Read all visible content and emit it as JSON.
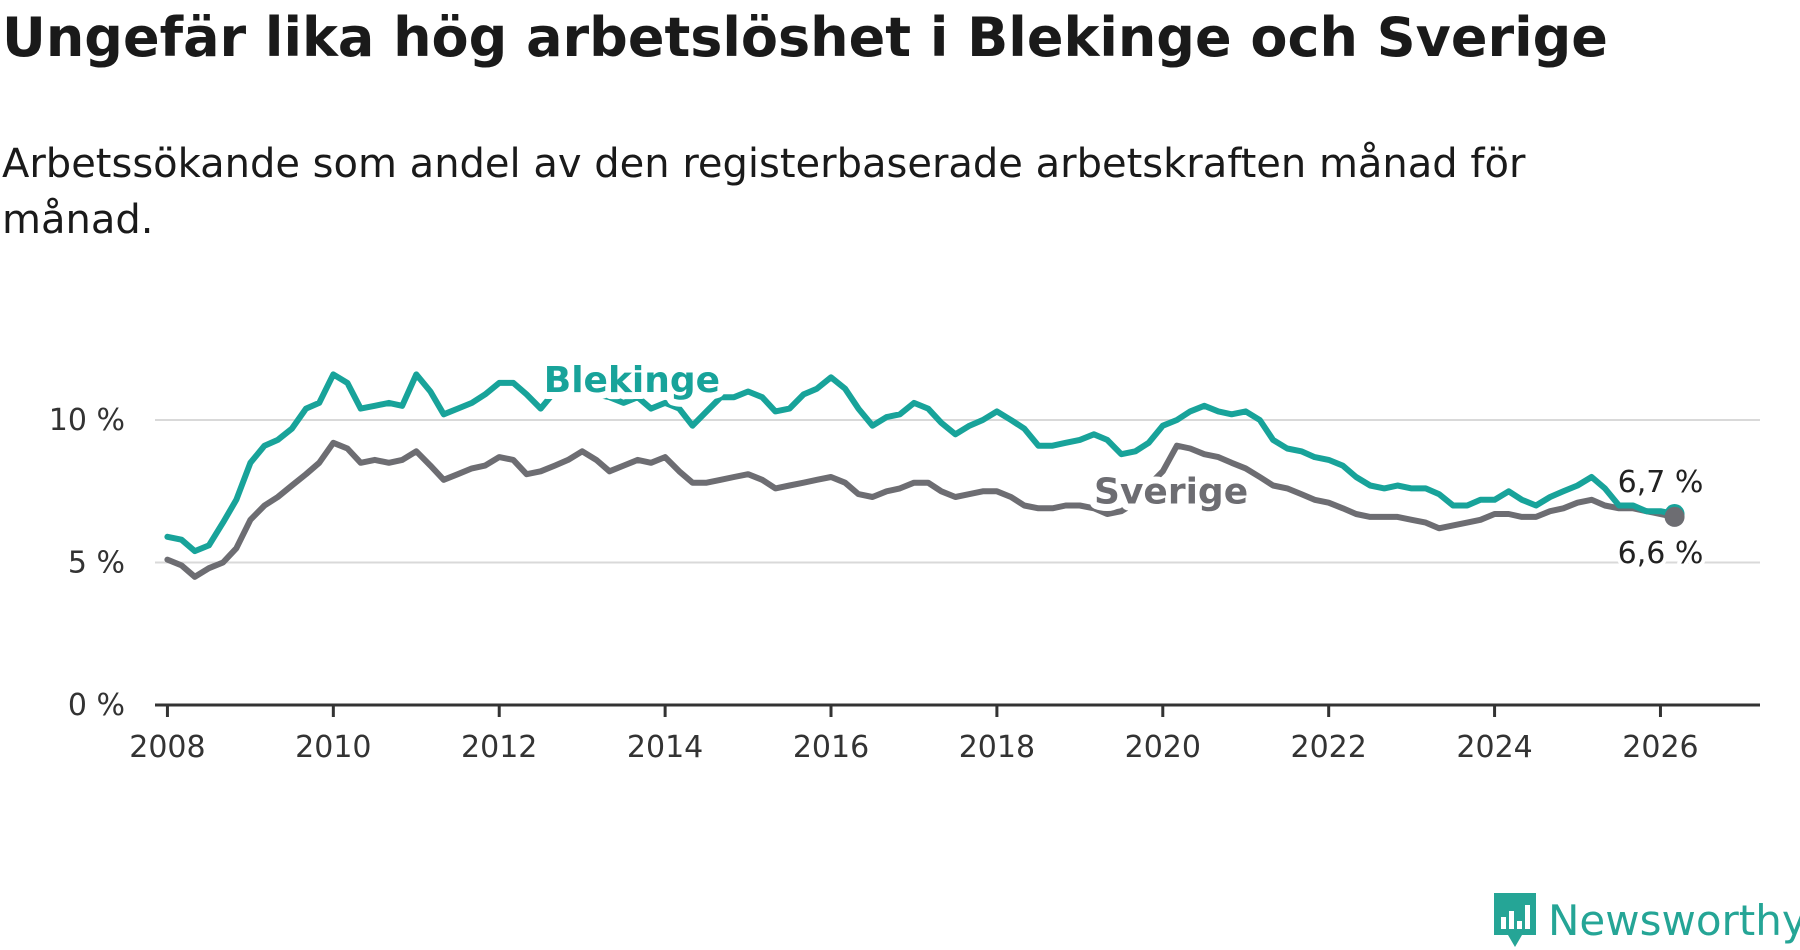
{
  "title": "Ungefär lika hög arbetslöshet i Blekinge och Sverige",
  "subtitle": "Arbetssökande som andel av den registerbaserade arbetskraften månad för månad.",
  "brand": {
    "name": "Newsworthy",
    "color": "#25a596"
  },
  "chart_data": {
    "type": "line",
    "title": "Ungefär lika hög arbetslöshet i Blekinge och Sverige",
    "subtitle": "Arbetssökande som andel av den registerbaserade arbetskraften månad för månad.",
    "xlabel": "",
    "ylabel": "",
    "xlim": [
      2007.85,
      2027.2
    ],
    "ylim": [
      0,
      12
    ],
    "x_ticks": [
      2008,
      2010,
      2012,
      2014,
      2016,
      2018,
      2020,
      2022,
      2024,
      2026
    ],
    "x_tick_labels": [
      "2008",
      "2010",
      "2012",
      "2014",
      "2016",
      "2018",
      "2020",
      "2022",
      "2024",
      "2026"
    ],
    "y_ticks": [
      0,
      5,
      10
    ],
    "y_tick_labels": [
      "0 %",
      "5 %",
      "10 %"
    ],
    "grid": true,
    "series": [
      {
        "name": "Blekinge",
        "color": "#18a39a",
        "x": [
          2008.0,
          2008.17,
          2008.33,
          2008.5,
          2008.67,
          2008.83,
          2009.0,
          2009.17,
          2009.33,
          2009.5,
          2009.67,
          2009.83,
          2010.0,
          2010.17,
          2010.33,
          2010.5,
          2010.67,
          2010.83,
          2011.0,
          2011.17,
          2011.33,
          2011.5,
          2011.67,
          2011.83,
          2012.0,
          2012.17,
          2012.33,
          2012.5,
          2012.67,
          2012.83,
          2013.0,
          2013.17,
          2013.33,
          2013.5,
          2013.67,
          2013.83,
          2014.0,
          2014.17,
          2014.33,
          2014.5,
          2014.67,
          2014.83,
          2015.0,
          2015.17,
          2015.33,
          2015.5,
          2015.67,
          2015.83,
          2016.0,
          2016.17,
          2016.33,
          2016.5,
          2016.67,
          2016.83,
          2017.0,
          2017.17,
          2017.33,
          2017.5,
          2017.67,
          2017.83,
          2018.0,
          2018.17,
          2018.33,
          2018.5,
          2018.67,
          2018.83,
          2019.0,
          2019.17,
          2019.33,
          2019.5,
          2019.67,
          2019.83,
          2020.0,
          2020.17,
          2020.33,
          2020.5,
          2020.67,
          2020.83,
          2021.0,
          2021.17,
          2021.33,
          2021.5,
          2021.67,
          2021.83,
          2022.0,
          2022.17,
          2022.33,
          2022.5,
          2022.67,
          2022.83,
          2023.0,
          2023.17,
          2023.33,
          2023.5,
          2023.67,
          2023.83,
          2024.0,
          2024.17,
          2024.33,
          2024.5,
          2024.67,
          2024.83,
          2025.0,
          2025.17,
          2025.33,
          2025.5,
          2025.67,
          2025.83,
          2026.0,
          2026.17
        ],
        "values": [
          5.9,
          5.8,
          5.4,
          5.6,
          6.4,
          7.2,
          8.5,
          9.1,
          9.3,
          9.7,
          10.4,
          10.6,
          11.6,
          11.3,
          10.4,
          10.5,
          10.6,
          10.5,
          11.6,
          11.0,
          10.2,
          10.4,
          10.6,
          10.9,
          11.3,
          11.3,
          10.9,
          10.4,
          11.0,
          11.3,
          11.6,
          10.9,
          10.8,
          10.6,
          10.8,
          10.4,
          10.6,
          10.4,
          9.8,
          10.3,
          10.8,
          10.8,
          11.0,
          10.8,
          10.3,
          10.4,
          10.9,
          11.1,
          11.5,
          11.1,
          10.4,
          9.8,
          10.1,
          10.2,
          10.6,
          10.4,
          9.9,
          9.5,
          9.8,
          10.0,
          10.3,
          10.0,
          9.7,
          9.1,
          9.1,
          9.2,
          9.3,
          9.5,
          9.3,
          8.8,
          8.9,
          9.2,
          9.8,
          10.0,
          10.3,
          10.5,
          10.3,
          10.2,
          10.3,
          10.0,
          9.3,
          9.0,
          8.9,
          8.7,
          8.6,
          8.4,
          8.0,
          7.7,
          7.6,
          7.7,
          7.6,
          7.6,
          7.4,
          7.0,
          7.0,
          7.2,
          7.2,
          7.5,
          7.2,
          7.0,
          7.3,
          7.5,
          7.7,
          8.0,
          7.6,
          7.0,
          7.0,
          6.8,
          6.8,
          6.7
        ]
      },
      {
        "name": "Sverige",
        "color": "#6d6d72",
        "x": [
          2008.0,
          2008.17,
          2008.33,
          2008.5,
          2008.67,
          2008.83,
          2009.0,
          2009.17,
          2009.33,
          2009.5,
          2009.67,
          2009.83,
          2010.0,
          2010.17,
          2010.33,
          2010.5,
          2010.67,
          2010.83,
          2011.0,
          2011.17,
          2011.33,
          2011.5,
          2011.67,
          2011.83,
          2012.0,
          2012.17,
          2012.33,
          2012.5,
          2012.67,
          2012.83,
          2013.0,
          2013.17,
          2013.33,
          2013.5,
          2013.67,
          2013.83,
          2014.0,
          2014.17,
          2014.33,
          2014.5,
          2014.67,
          2014.83,
          2015.0,
          2015.17,
          2015.33,
          2015.5,
          2015.67,
          2015.83,
          2016.0,
          2016.17,
          2016.33,
          2016.5,
          2016.67,
          2016.83,
          2017.0,
          2017.17,
          2017.33,
          2017.5,
          2017.67,
          2017.83,
          2018.0,
          2018.17,
          2018.33,
          2018.5,
          2018.67,
          2018.83,
          2019.0,
          2019.17,
          2019.33,
          2019.5,
          2019.67,
          2019.83,
          2020.0,
          2020.17,
          2020.33,
          2020.5,
          2020.67,
          2020.83,
          2021.0,
          2021.17,
          2021.33,
          2021.5,
          2021.67,
          2021.83,
          2022.0,
          2022.17,
          2022.33,
          2022.5,
          2022.67,
          2022.83,
          2023.0,
          2023.17,
          2023.33,
          2023.5,
          2023.67,
          2023.83,
          2024.0,
          2024.17,
          2024.33,
          2024.5,
          2024.67,
          2024.83,
          2025.0,
          2025.17,
          2025.33,
          2025.5,
          2025.67,
          2025.83,
          2026.0,
          2026.17
        ],
        "values": [
          5.1,
          4.9,
          4.5,
          4.8,
          5.0,
          5.5,
          6.5,
          7.0,
          7.3,
          7.7,
          8.1,
          8.5,
          9.2,
          9.0,
          8.5,
          8.6,
          8.5,
          8.6,
          8.9,
          8.4,
          7.9,
          8.1,
          8.3,
          8.4,
          8.7,
          8.6,
          8.1,
          8.2,
          8.4,
          8.6,
          8.9,
          8.6,
          8.2,
          8.4,
          8.6,
          8.5,
          8.7,
          8.2,
          7.8,
          7.8,
          7.9,
          8.0,
          8.1,
          7.9,
          7.6,
          7.7,
          7.8,
          7.9,
          8.0,
          7.8,
          7.4,
          7.3,
          7.5,
          7.6,
          7.8,
          7.8,
          7.5,
          7.3,
          7.4,
          7.5,
          7.5,
          7.3,
          7.0,
          6.9,
          6.9,
          7.0,
          7.0,
          6.9,
          6.7,
          6.8,
          7.1,
          7.7,
          8.2,
          9.1,
          9.0,
          8.8,
          8.7,
          8.5,
          8.3,
          8.0,
          7.7,
          7.6,
          7.4,
          7.2,
          7.1,
          6.9,
          6.7,
          6.6,
          6.6,
          6.6,
          6.5,
          6.4,
          6.2,
          6.3,
          6.4,
          6.5,
          6.7,
          6.7,
          6.6,
          6.6,
          6.8,
          6.9,
          7.1,
          7.2,
          7.0,
          6.9,
          6.9,
          6.8,
          6.7,
          6.6
        ]
      }
    ],
    "series_labels": [
      {
        "series": "Blekinge",
        "text": "Blekinge",
        "x": 2013.6,
        "y": 11.4
      },
      {
        "series": "Sverige",
        "text": "Sverige",
        "x": 2020.1,
        "y": 7.5
      }
    ],
    "end_labels": [
      {
        "series": "Blekinge",
        "text": "6,7 %"
      },
      {
        "series": "Sverige",
        "text": "6,6 %"
      }
    ]
  }
}
